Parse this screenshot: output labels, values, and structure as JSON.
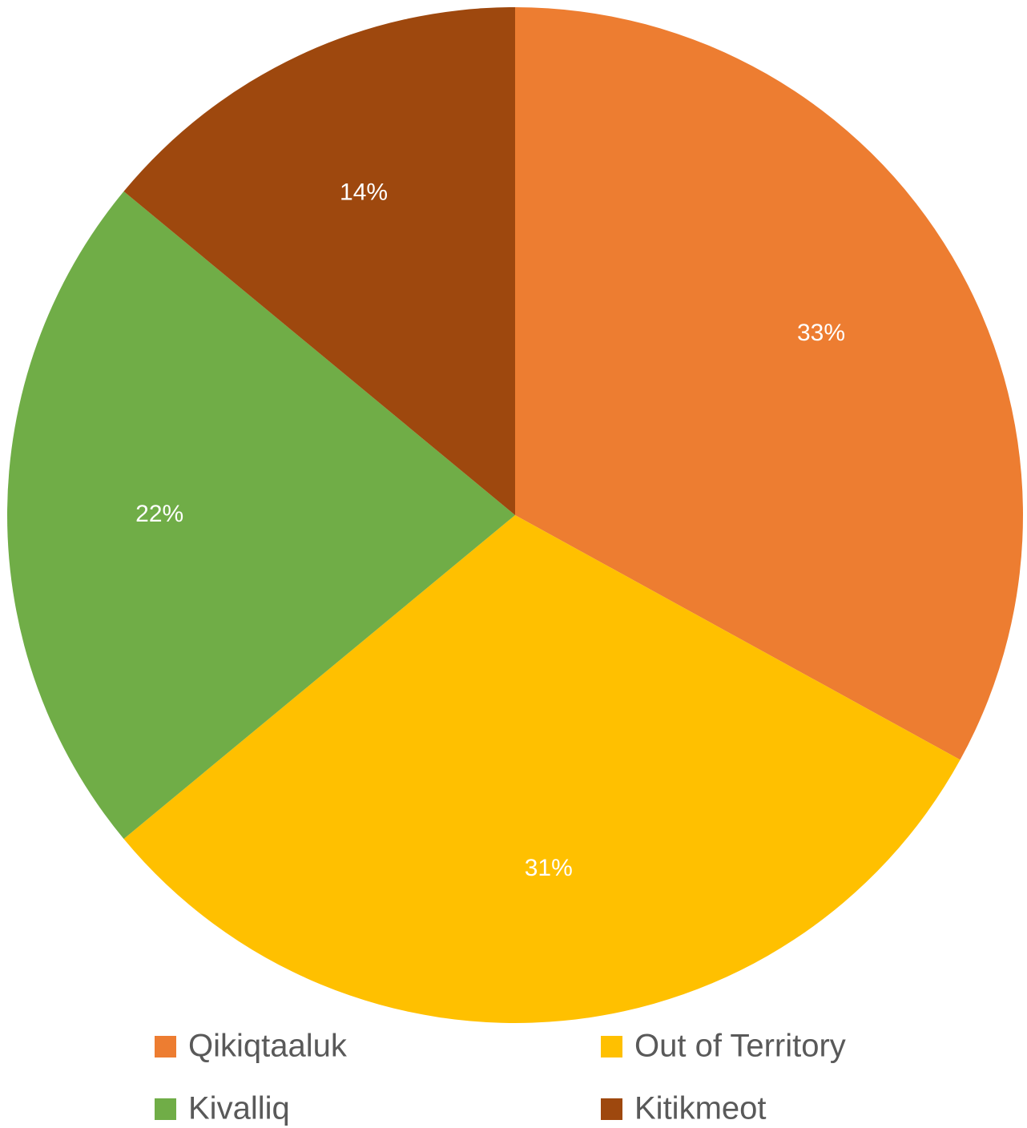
{
  "chart_data": {
    "type": "pie",
    "categories": [
      "Qikiqtaaluk",
      "Out of Territory",
      "Kivalliq",
      "Kitikmeot"
    ],
    "values": [
      33,
      31,
      22,
      14
    ],
    "value_labels": [
      "33%",
      "31%",
      "22%",
      "14%"
    ],
    "colors": [
      "#ED7D31",
      "#FFC000",
      "#70AD47",
      "#9E480E"
    ],
    "legend": "bottom"
  }
}
